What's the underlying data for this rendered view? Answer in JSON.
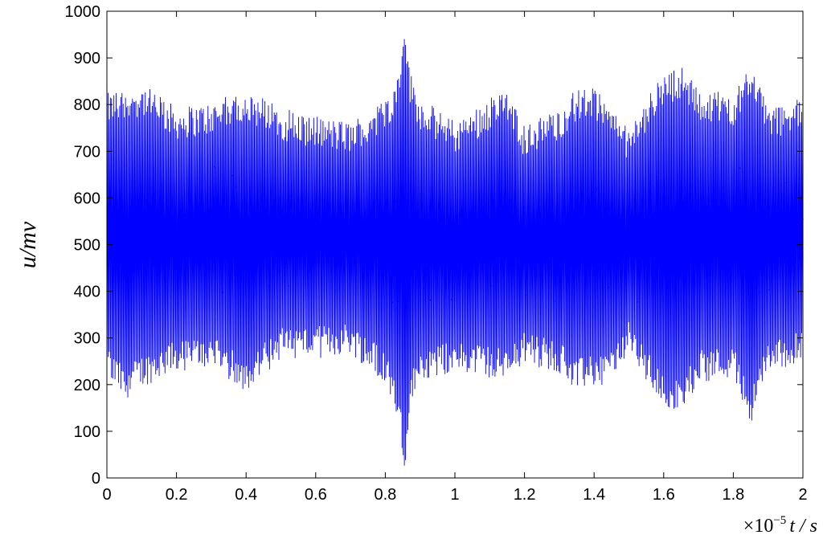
{
  "chart_data": {
    "type": "line",
    "title": "",
    "ylabel": "u/mv",
    "xlabel_multiplier": "×10",
    "xlabel_exponent": "−5",
    "xlabel_unit": "t / s",
    "xlim": [
      0,
      2
    ],
    "ylim": [
      0,
      1000
    ],
    "xticks": [
      "0",
      "0.2",
      "0.4",
      "0.6",
      "0.8",
      "1",
      "1.2",
      "1.4",
      "1.6",
      "1.8",
      "2"
    ],
    "yticks": [
      "0",
      "100",
      "200",
      "300",
      "400",
      "500",
      "600",
      "700",
      "800",
      "900",
      "1000"
    ],
    "grid": false,
    "series": [
      {
        "color": "#0000ff",
        "num_samples": 600,
        "center": 520,
        "envelope": {
          "x": [
            0.0,
            0.05,
            0.1,
            0.2,
            0.3,
            0.4,
            0.5,
            0.6,
            0.7,
            0.8,
            0.84,
            0.855,
            0.87,
            0.9,
            1.0,
            1.1,
            1.15,
            1.2,
            1.3,
            1.35,
            1.4,
            1.45,
            1.5,
            1.55,
            1.6,
            1.65,
            1.7,
            1.8,
            1.85,
            1.9,
            2.0
          ],
          "max": [
            790,
            800,
            810,
            760,
            770,
            800,
            760,
            740,
            730,
            780,
            830,
            960,
            840,
            780,
            730,
            780,
            800,
            720,
            760,
            800,
            800,
            760,
            710,
            780,
            830,
            850,
            800,
            790,
            860,
            760,
            780
          ],
          "min": [
            250,
            200,
            230,
            260,
            270,
            220,
            290,
            290,
            300,
            240,
            150,
            20,
            180,
            240,
            260,
            250,
            240,
            280,
            260,
            220,
            230,
            240,
            300,
            240,
            190,
            170,
            240,
            250,
            150,
            260,
            280
          ]
        }
      }
    ]
  }
}
